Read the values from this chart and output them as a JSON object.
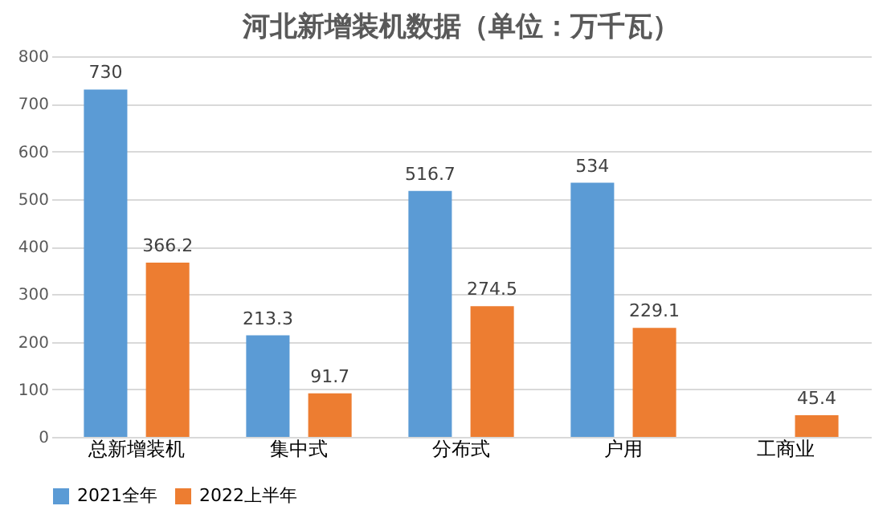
{
  "chart_data": {
    "type": "bar",
    "title": "河北新增装机数据（单位：万千瓦）",
    "categories": [
      "总新增装机",
      "集中式",
      "分布式",
      "户用",
      "工商业"
    ],
    "series": [
      {
        "name": "2021全年",
        "color": "#5b9bd5",
        "values": [
          730,
          213.3,
          516.7,
          534,
          null
        ]
      },
      {
        "name": "2022上半年",
        "color": "#ed7d31",
        "values": [
          366.2,
          91.7,
          274.5,
          229.1,
          45.4
        ]
      }
    ],
    "ylim": [
      0,
      800
    ],
    "yticks": [
      0,
      100,
      200,
      300,
      400,
      500,
      600,
      700,
      800
    ],
    "grid": "y",
    "legend": "bottom",
    "data_labels": true
  }
}
